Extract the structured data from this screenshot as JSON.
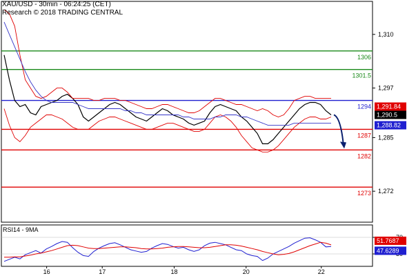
{
  "header": {
    "line1": "XAU/USD - 30min - 06:24:25 (CET)",
    "line2": "Research © 2018 TRADING CENTRAL"
  },
  "colors": {
    "resistance": "#1a8a1a",
    "pivot": "#1f1fd0",
    "support": "#e00000",
    "price": "#000000",
    "bollinger": "#e00000",
    "ma_slow": "#3535c8",
    "rsi_line": "#1f1fd0",
    "rsi_signal": "#e00000",
    "arrow": "#0a1f6e",
    "tag_red_bg": "#e00000",
    "tag_black_bg": "#000000",
    "tag_blue_bg": "#1f1fd0"
  },
  "chart_data": {
    "type": "line",
    "title": "XAU/USD - 30min - 06:24:25 (CET)",
    "x_labels": [
      "16",
      "17",
      "18",
      "20",
      "22"
    ],
    "y_ticks": [
      "1,310",
      "1,297",
      "1,285",
      "1,272"
    ],
    "ylim": [
      1264.5,
      1318
    ],
    "levels": [
      {
        "label": "1306",
        "value": 1306,
        "role": "resistance"
      },
      {
        "label": "1301.5",
        "value": 1301.5,
        "role": "resistance"
      },
      {
        "label": "1294",
        "value": 1294,
        "role": "pivot"
      },
      {
        "label": "1287",
        "value": 1287,
        "role": "support"
      },
      {
        "label": "1282",
        "value": 1282,
        "role": "support"
      },
      {
        "label": "1273",
        "value": 1273,
        "role": "support"
      }
    ],
    "price_tags": [
      {
        "label": "1,291.84",
        "value": 1291.84,
        "style": "red"
      },
      {
        "label": "1,290.5",
        "value": 1290.5,
        "style": "black"
      },
      {
        "label": "1,288.82",
        "value": 1288.82,
        "style": "blue"
      }
    ],
    "series": [
      {
        "name": "XAU/USD",
        "style": "price",
        "values": [
          1305,
          1299,
          1294,
          1292.5,
          1293,
          1291,
          1290.5,
          1292.5,
          1293,
          1293.5,
          1294,
          1295,
          1295.5,
          1294.5,
          1293,
          1290,
          1289,
          1290,
          1291,
          1292,
          1293,
          1293.5,
          1293,
          1292,
          1291,
          1290,
          1289.5,
          1289,
          1290,
          1291,
          1292,
          1291.5,
          1290.5,
          1290,
          1289.5,
          1288.5,
          1288,
          1288.5,
          1289,
          1291,
          1292.5,
          1293,
          1292.5,
          1292,
          1291.5,
          1290,
          1289,
          1287.5,
          1286,
          1283.5,
          1283.5,
          1284.5,
          1286,
          1287.5,
          1289,
          1290.5,
          1292,
          1293,
          1293.5,
          1293.5,
          1293,
          1291.5,
          1290.5
        ]
      },
      {
        "name": "Bollinger upper",
        "style": "bollinger",
        "values": [
          1316,
          1315,
          1312,
          1305,
          1299,
          1297,
          1295,
          1294.5,
          1295,
          1296,
          1297,
          1297,
          1296,
          1294.5,
          1294.5,
          1294.5,
          1294.5,
          1294,
          1294,
          1294.5,
          1294.5,
          1294.5,
          1294,
          1294,
          1293.5,
          1293,
          1292.5,
          1292,
          1292,
          1292.5,
          1293,
          1293,
          1292.5,
          1292,
          1291.5,
          1291,
          1291,
          1291.5,
          1292.5,
          1293.5,
          1294.5,
          1294.5,
          1294,
          1293.5,
          1293,
          1293,
          1292.5,
          1292,
          1291.5,
          1292,
          1291.5,
          1290.5,
          1290,
          1290.5,
          1292,
          1294,
          1294.5,
          1295,
          1295,
          1294.5,
          1294.5,
          1294.5,
          1294.5
        ]
      },
      {
        "name": "Bollinger lower",
        "style": "bollinger",
        "values": [
          1292,
          1288,
          1285,
          1284,
          1285.5,
          1287.5,
          1288.5,
          1289.5,
          1290.5,
          1290.5,
          1290,
          1289.5,
          1288.5,
          1287.5,
          1287,
          1287,
          1287,
          1288,
          1289,
          1289.5,
          1290,
          1290,
          1289.5,
          1289,
          1288.5,
          1288,
          1287.5,
          1287,
          1287,
          1287.5,
          1288,
          1288.5,
          1288.5,
          1288,
          1287.5,
          1287,
          1286.5,
          1286.5,
          1287,
          1288.5,
          1290,
          1290.5,
          1290,
          1289,
          1287.5,
          1285.5,
          1284,
          1282.5,
          1282,
          1281.5,
          1281.5,
          1282,
          1283,
          1284.5,
          1286,
          1287.5,
          1288.5,
          1289.5,
          1290,
          1290,
          1289.5,
          1289.5,
          1290
        ]
      },
      {
        "name": "Moving average",
        "style": "ma_slow",
        "values": [
          1313,
          1310,
          1307,
          1304,
          1301,
          1298.5,
          1296.5,
          1295,
          1294,
          1293.5,
          1293.5,
          1293.5,
          1293.5,
          1293.5,
          1293,
          1292.5,
          1292,
          1292,
          1292,
          1292,
          1292,
          1292,
          1292,
          1291.5,
          1291.5,
          1291,
          1291,
          1290.5,
          1290.5,
          1290.5,
          1290.5,
          1290.5,
          1290.5,
          1290.5,
          1290,
          1290,
          1289.5,
          1289.5,
          1289.5,
          1289.5,
          1290,
          1290,
          1290.5,
          1290.5,
          1290.5,
          1290,
          1290,
          1289.5,
          1289,
          1288.5,
          1288,
          1288,
          1288,
          1288,
          1288,
          1288.5,
          1288.5,
          1288.5,
          1288.5,
          1288.5,
          1288.5,
          1288.5,
          1288.5
        ]
      }
    ],
    "projection_arrow": {
      "from": 1290.5,
      "to": 1283,
      "style": "arrow"
    },
    "rsi": {
      "title": "RSI14 - 9MA",
      "y_ticks": [
        "70",
        "30"
      ],
      "ylim": [
        0,
        100
      ],
      "tags": [
        {
          "label": "51.7687",
          "value": 51.7687,
          "style": "red"
        },
        {
          "label": "47.6289",
          "value": 47.6289,
          "style": "blue"
        }
      ],
      "series": [
        {
          "name": "RSI14",
          "style": "rsi_line",
          "values": [
            12,
            17,
            22,
            18,
            28,
            33,
            38,
            32,
            42,
            48,
            55,
            60,
            58,
            45,
            34,
            26,
            24,
            36,
            44,
            50,
            55,
            57,
            52,
            46,
            40,
            37,
            34,
            36,
            44,
            50,
            55,
            53,
            48,
            44,
            46,
            40,
            36,
            40,
            50,
            56,
            58,
            55,
            52,
            46,
            40,
            38,
            30,
            26,
            24,
            14,
            20,
            30,
            36,
            42,
            48,
            56,
            62,
            68,
            69,
            64,
            58,
            47,
            48
          ]
        },
        {
          "name": "9MA",
          "style": "rsi_signal",
          "values": [
            22,
            22,
            23,
            23,
            25,
            27,
            30,
            32,
            35,
            38,
            42,
            46,
            50,
            51,
            50,
            47,
            44,
            43,
            43,
            44,
            45,
            46,
            47,
            47,
            46,
            45,
            43,
            42,
            42,
            43,
            44,
            46,
            47,
            48,
            48,
            47,
            46,
            45,
            45,
            46,
            48,
            50,
            52,
            52,
            51,
            49,
            46,
            43,
            40,
            36,
            33,
            30,
            28,
            29,
            31,
            35,
            40,
            45,
            50,
            54,
            58,
            56,
            51.8
          ]
        }
      ]
    }
  }
}
